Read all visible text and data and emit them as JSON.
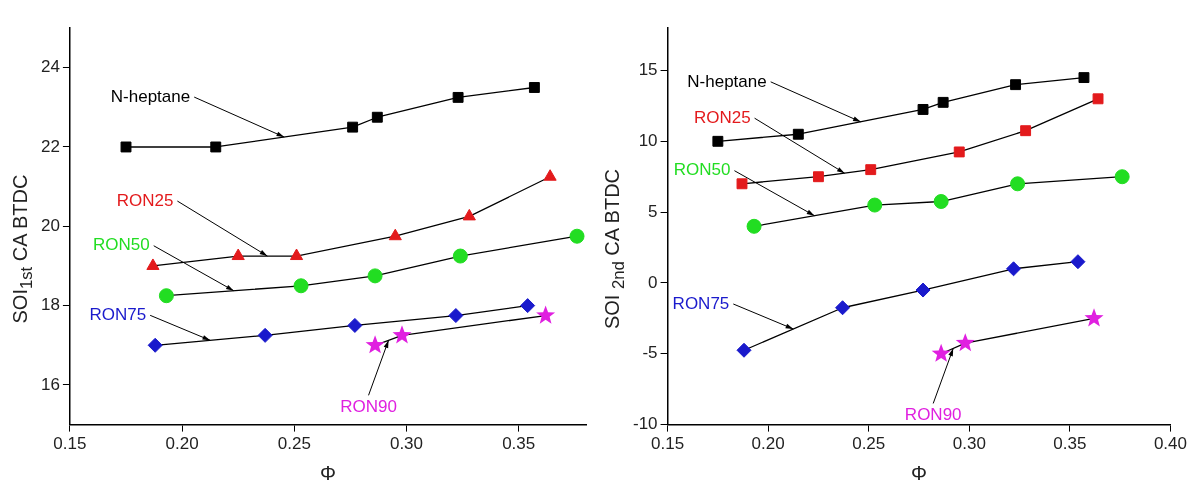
{
  "chart_data": [
    {
      "type": "line",
      "xlabel": "Φ",
      "ylabel": "SOI$_{1st}$  CA BTDC",
      "xlim": [
        0.15,
        0.38
      ],
      "xticks": [
        {
          "value": 0.15,
          "label": "0.15"
        },
        {
          "value": 0.2,
          "label": "0.20"
        },
        {
          "value": 0.25,
          "label": "0.25"
        },
        {
          "value": 0.3,
          "label": "0.30"
        },
        {
          "value": 0.35,
          "label": "0.35"
        }
      ],
      "ylim": [
        15,
        25
      ],
      "yticks": [
        16,
        18,
        20,
        22,
        24
      ],
      "grid": false,
      "legend": false,
      "line_style": "solid",
      "series": [
        {
          "name": "N-heptane",
          "color": "#000000",
          "marker": "square",
          "x": [
            0.175,
            0.215,
            0.276,
            0.287,
            0.323,
            0.357
          ],
          "values": [
            22,
            22,
            22.5,
            22.75,
            23.25,
            23.5
          ]
        },
        {
          "name": "RON25",
          "color": "#e31a1c",
          "marker": "triangle",
          "x": [
            0.187,
            0.225,
            0.251,
            0.295,
            0.328,
            0.364
          ],
          "values": [
            19,
            19.25,
            19.25,
            19.75,
            20.25,
            21.25
          ]
        },
        {
          "name": "RON50",
          "color": "#22dd22",
          "marker": "circle",
          "x": [
            0.193,
            0.253,
            0.286,
            0.324,
            0.376
          ],
          "values": [
            18.25,
            18.5,
            18.75,
            19.25,
            19.75
          ]
        },
        {
          "name": "RON75",
          "color": "#1a1acc",
          "marker": "diamond",
          "x": [
            0.188,
            0.237,
            0.277,
            0.322,
            0.354
          ],
          "values": [
            17,
            17.25,
            17.5,
            17.75,
            18
          ]
        },
        {
          "name": "RON90",
          "color": "#e020e0",
          "marker": "star",
          "x": [
            0.286,
            0.298,
            0.362
          ],
          "values": [
            17,
            17.25,
            17.75
          ]
        }
      ]
    },
    {
      "type": "line",
      "xlabel": "Φ",
      "ylabel": "SOI $_{2nd}$  CA BTDC",
      "xlim": [
        0.15,
        0.4
      ],
      "xticks": [
        {
          "value": 0.15,
          "label": "0.15"
        },
        {
          "value": 0.2,
          "label": "0.20"
        },
        {
          "value": 0.25,
          "label": "0.25"
        },
        {
          "value": 0.3,
          "label": "0.30"
        },
        {
          "value": 0.35,
          "label": "0.35"
        },
        {
          "value": 0.4,
          "label": "0.40"
        }
      ],
      "ylim": [
        -10,
        18
      ],
      "yticks": [
        -10,
        -5,
        0,
        5,
        10,
        15
      ],
      "grid": false,
      "legend": false,
      "line_style": "solid",
      "series": [
        {
          "name": "N-heptane",
          "color": "#000000",
          "marker": "square",
          "x": [
            0.175,
            0.215,
            0.277,
            0.287,
            0.323,
            0.357
          ],
          "values": [
            10,
            10.5,
            12.25,
            12.75,
            14,
            14.5
          ]
        },
        {
          "name": "RON25",
          "color": "#e31a1c",
          "marker": "square",
          "x": [
            0.187,
            0.225,
            0.251,
            0.295,
            0.328,
            0.364
          ],
          "values": [
            7,
            7.5,
            8,
            9.25,
            10.75,
            13
          ]
        },
        {
          "name": "RON50",
          "color": "#22dd22",
          "marker": "circle",
          "x": [
            0.193,
            0.253,
            0.286,
            0.324,
            0.376
          ],
          "values": [
            4,
            5.5,
            5.75,
            7,
            7.5
          ]
        },
        {
          "name": "RON75",
          "color": "#1a1acc",
          "marker": "diamond",
          "x": [
            0.188,
            0.237,
            0.277,
            0.322,
            0.354
          ],
          "values": [
            -4.75,
            -1.75,
            -0.5,
            1,
            1.5
          ]
        },
        {
          "name": "RON90",
          "color": "#e020e0",
          "marker": "star",
          "x": [
            0.286,
            0.298,
            0.362
          ],
          "values": [
            -5,
            -4.25,
            -2.5
          ]
        }
      ]
    }
  ]
}
